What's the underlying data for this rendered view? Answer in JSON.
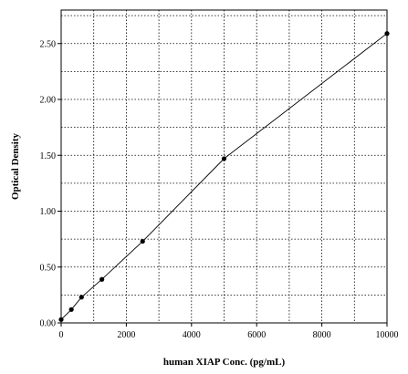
{
  "chart_data": {
    "type": "line",
    "title": "",
    "xlabel": "human XIAP Conc. (pg/mL)",
    "ylabel": "Optical Density",
    "xlim": [
      0,
      10000
    ],
    "ylim": [
      0,
      2.8
    ],
    "x_major_ticks": [
      0,
      2000,
      4000,
      6000,
      8000,
      10000
    ],
    "x_tick_labels": [
      "0",
      "2000",
      "4000",
      "6000",
      "8000",
      "10000"
    ],
    "x_minor_grid": [
      1000,
      3000,
      5000,
      7000,
      9000
    ],
    "y_major_ticks": [
      0,
      0.5,
      1.0,
      1.5,
      2.0,
      2.5
    ],
    "y_tick_labels": [
      "0.00",
      "0.50",
      "1.00",
      "1.50",
      "2.00",
      "2.50"
    ],
    "y_minor_grid": [
      0.25,
      0.75,
      1.25,
      1.75,
      2.25,
      2.75
    ],
    "grid": true,
    "series": [
      {
        "points": [
          {
            "x": 0,
            "y": 0.03
          },
          {
            "x": 312.5,
            "y": 0.12
          },
          {
            "x": 625,
            "y": 0.23
          },
          {
            "x": 1250,
            "y": 0.39
          },
          {
            "x": 2500,
            "y": 0.73
          },
          {
            "x": 5000,
            "y": 1.47
          },
          {
            "x": 10000,
            "y": 2.59
          }
        ]
      }
    ]
  }
}
